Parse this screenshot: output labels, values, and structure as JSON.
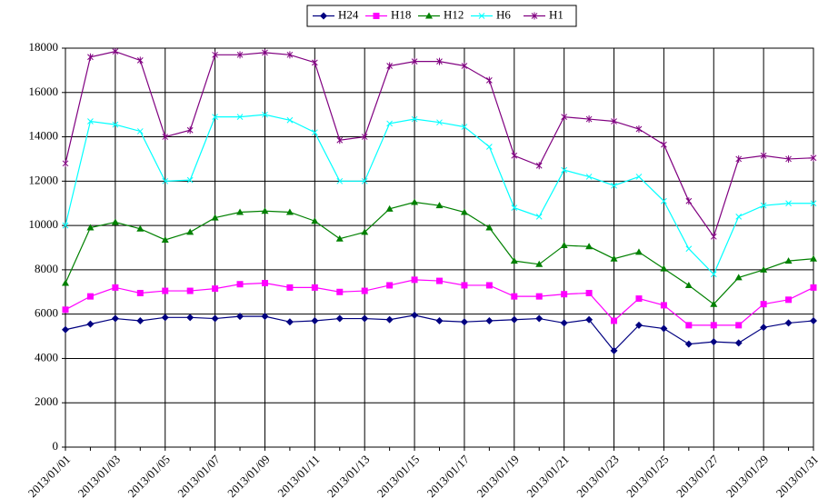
{
  "chart_data": {
    "type": "line",
    "categories": [
      "2013/01/01",
      null,
      "2013/01/03",
      null,
      "2013/01/05",
      null,
      "2013/01/07",
      null,
      "2013/01/09",
      null,
      "2013/01/11",
      null,
      "2013/01/13",
      null,
      "2013/01/15",
      null,
      "2013/01/17",
      null,
      "2013/01/19",
      null,
      "2013/01/21",
      null,
      "2013/01/23",
      null,
      "2013/01/25",
      null,
      "2013/01/27",
      null,
      "2013/01/29",
      null,
      "2013/01/31"
    ],
    "series": [
      {
        "name": "H24",
        "color": "#000080",
        "marker": "diamond",
        "values": [
          5300,
          5550,
          5800,
          5700,
          5850,
          5850,
          5800,
          5900,
          5900,
          5650,
          5700,
          5800,
          5800,
          5750,
          5950,
          5700,
          5650,
          5700,
          5750,
          5800,
          5600,
          5750,
          4350,
          5500,
          5350,
          4650,
          4750,
          4700,
          5400,
          5600,
          5700
        ]
      },
      {
        "name": "H18",
        "color": "#ff00ff",
        "marker": "square",
        "values": [
          6200,
          6800,
          7200,
          6950,
          7050,
          7050,
          7150,
          7350,
          7400,
          7200,
          7200,
          7000,
          7050,
          7300,
          7550,
          7500,
          7300,
          7300,
          6800,
          6800,
          6900,
          6950,
          5700,
          6700,
          6400,
          5500,
          5500,
          5500,
          6450,
          6650,
          7200
        ]
      },
      {
        "name": "H12",
        "color": "#008000",
        "marker": "triangle",
        "values": [
          7400,
          9900,
          10150,
          9850,
          9350,
          9700,
          10350,
          10600,
          10650,
          10600,
          10200,
          9400,
          9700,
          10750,
          11050,
          10900,
          10600,
          9900,
          8400,
          8250,
          9100,
          9050,
          8500,
          8800,
          8050,
          7300,
          6450,
          7650,
          8000,
          8400,
          8500
        ]
      },
      {
        "name": "H6",
        "color": "#00ffff",
        "marker": "x",
        "values": [
          10000,
          14700,
          14550,
          14250,
          12000,
          12050,
          14900,
          14900,
          15000,
          14750,
          14200,
          12000,
          12000,
          14600,
          14800,
          14650,
          14450,
          13550,
          10800,
          10400,
          12500,
          12200,
          11800,
          12200,
          11100,
          8950,
          7800,
          10400,
          10900,
          11000,
          11000
        ]
      },
      {
        "name": "H1",
        "color": "#800080",
        "marker": "star",
        "values": [
          12800,
          17600,
          17850,
          17450,
          14000,
          14300,
          17700,
          17700,
          17800,
          17700,
          17350,
          13850,
          14000,
          17200,
          17400,
          17400,
          17200,
          16550,
          13150,
          12700,
          14900,
          14800,
          14700,
          14350,
          13650,
          11100,
          9500,
          13000,
          13150,
          13000,
          13050
        ]
      }
    ],
    "ylim": [
      0,
      18000
    ],
    "yticks": [
      0,
      2000,
      4000,
      6000,
      8000,
      10000,
      12000,
      14000,
      16000,
      18000
    ],
    "grid": true,
    "legend": "top"
  }
}
